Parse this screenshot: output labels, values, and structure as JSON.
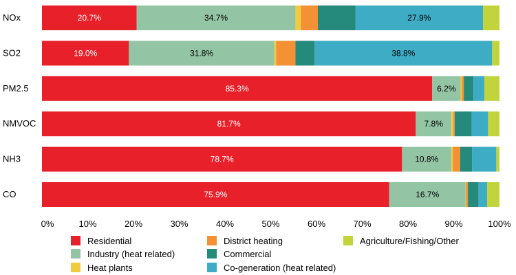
{
  "chart_data": {
    "type": "bar",
    "orientation": "horizontal",
    "stacked": true,
    "categories": [
      "NOx",
      "SO2",
      "PM2.5",
      "NMVOC",
      "NH3",
      "CO"
    ],
    "xlim": [
      0,
      100
    ],
    "xticks": [
      "0%",
      "10%",
      "20%",
      "30%",
      "40%",
      "50%",
      "60%",
      "70%",
      "80%",
      "90%",
      "100%"
    ],
    "grid": false,
    "legend_position": "bottom",
    "series": [
      {
        "name": "Residential",
        "color": "#E8202A",
        "values": [
          20.7,
          19.0,
          85.3,
          81.7,
          78.7,
          75.9
        ],
        "labels": [
          "20.7%",
          "19.0%",
          "85.3%",
          "81.7%",
          "78.7%",
          "75.9%"
        ]
      },
      {
        "name": "Industry (heat related)",
        "color": "#93C5A5",
        "values": [
          34.7,
          31.8,
          6.2,
          7.8,
          10.8,
          16.7
        ],
        "labels": [
          "34.7%",
          "31.8%",
          "6.2%",
          "7.8%",
          "10.8%",
          "16.7%"
        ]
      },
      {
        "name": "Heat plants",
        "color": "#F0CB3F",
        "values": [
          1.2,
          0.4,
          0.3,
          0.4,
          0.3,
          0.1
        ],
        "labels": [
          "",
          "",
          "",
          "",
          "",
          ""
        ]
      },
      {
        "name": "District heating",
        "color": "#F39134",
        "values": [
          3.7,
          4.2,
          0.4,
          0.3,
          1.6,
          0.4
        ]
      },
      {
        "name": "Commercial",
        "color": "#25897B",
        "values": [
          8.2,
          4.2,
          2.1,
          3.7,
          2.6,
          2.3
        ]
      },
      {
        "name": "Co-generation (heat related)",
        "color": "#3DACC4",
        "values": [
          27.9,
          38.8,
          2.4,
          3.6,
          5.3,
          1.9
        ],
        "labels": [
          "27.9%",
          "38.8%",
          "",
          "",
          "",
          ""
        ]
      },
      {
        "name": "Agriculture/Fishing/Other",
        "color": "#C2D43B",
        "values": [
          3.6,
          1.6,
          3.3,
          2.5,
          0.7,
          2.7
        ]
      }
    ]
  },
  "legend": {
    "order": [
      "Residential",
      "District heating",
      "Agriculture/Fishing/Other",
      "Industry (heat related)",
      "Commercial",
      "Heat plants",
      "Co-generation (heat related)"
    ]
  }
}
